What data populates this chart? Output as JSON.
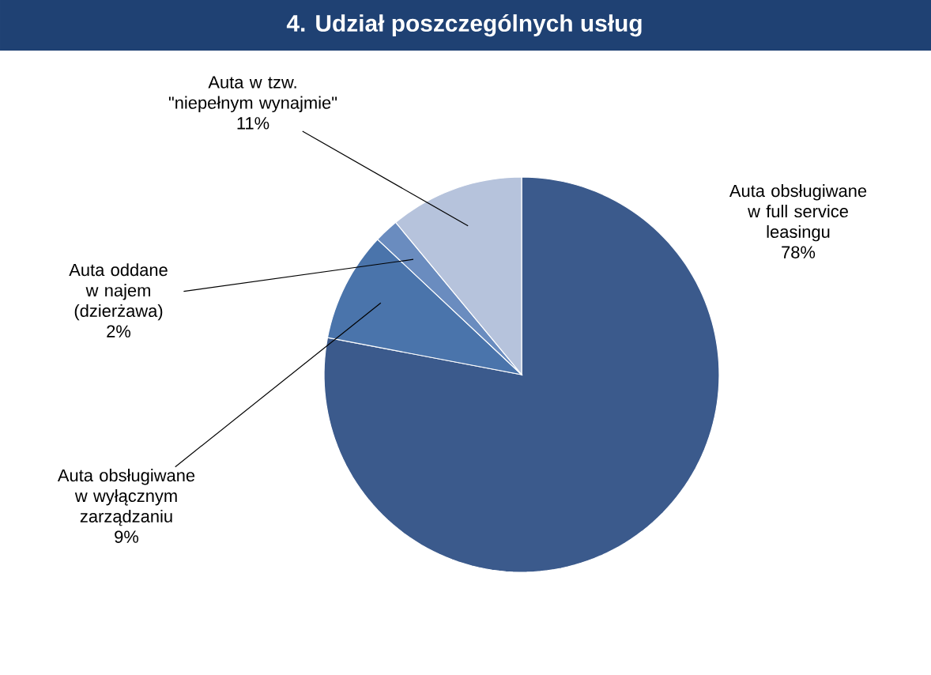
{
  "chart_data": {
    "type": "pie",
    "title": "4. Udział poszczególnych usług",
    "categories": [
      "Auta obsługiwane w full service leasingu",
      "Auta obsługiwane w wyłącznym zarządzaniu",
      "Auta  oddane w najem (dzierżawa)",
      "Auta w tzw. \"niepełnym wynajmie\""
    ],
    "values": [
      78,
      9,
      2,
      11
    ],
    "value_labels": [
      "78%",
      "9%",
      "2%",
      "11%"
    ],
    "colors": [
      "#3b5a8c",
      "#4a74ab",
      "#6a8cbf",
      "#b6c3dc"
    ]
  }
}
